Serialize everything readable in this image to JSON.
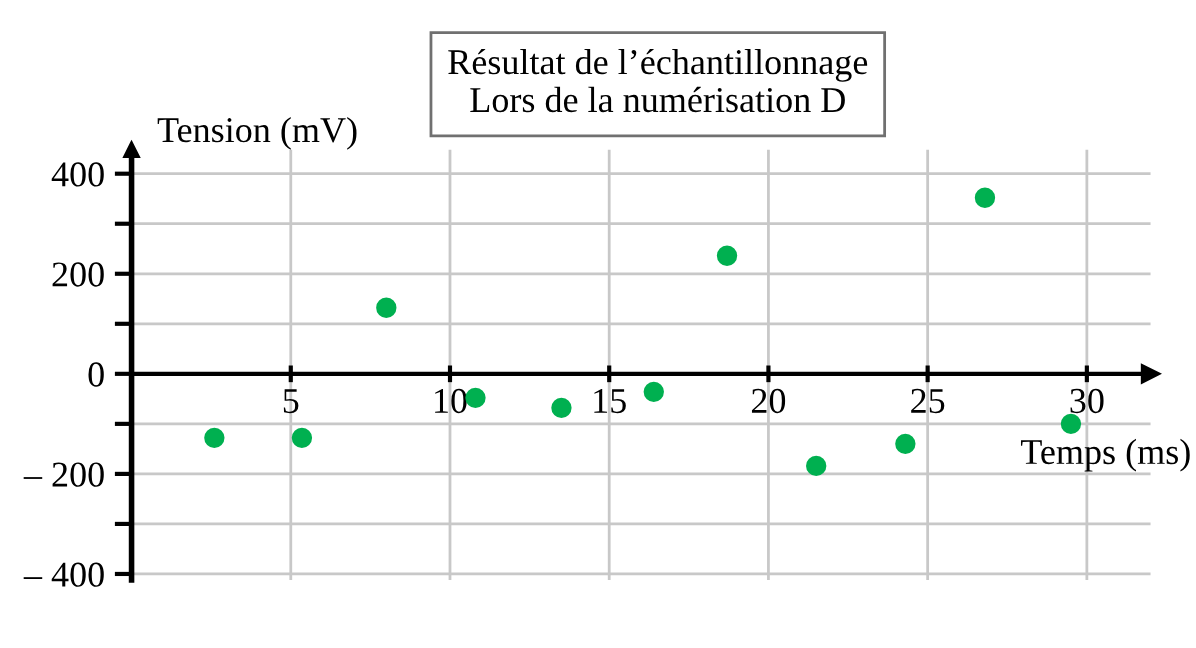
{
  "chart_data": {
    "type": "scatter",
    "title": "Résultat de l’échantillonnage\nLors de la numérisation D",
    "xlabel": "Temps (ms)",
    "ylabel": "Tension (mV)",
    "x": [
      2.6,
      5.35,
      8.0,
      10.8,
      13.5,
      16.4,
      18.7,
      21.5,
      24.3,
      26.8,
      29.5
    ],
    "series": [
      {
        "color": "#00b050",
        "values": [
          -128,
          -128,
          132,
          -48,
          -68,
          -36,
          236,
          -184,
          -140,
          352,
          -100
        ]
      }
    ],
    "xlim": [
      0,
      32
    ],
    "ylim": [
      -412,
      448
    ],
    "xticks": [
      5,
      10,
      15,
      20,
      25,
      30
    ],
    "yticks": [
      {
        "value": -400,
        "label": "– 400"
      },
      {
        "value": -300,
        "label": null
      },
      {
        "value": -200,
        "label": "– 200"
      },
      {
        "value": -100,
        "label": null
      },
      0,
      {
        "value": 100,
        "label": null
      },
      200,
      {
        "value": 300,
        "label": null
      },
      400
    ],
    "grid": true,
    "marker": "circle"
  }
}
